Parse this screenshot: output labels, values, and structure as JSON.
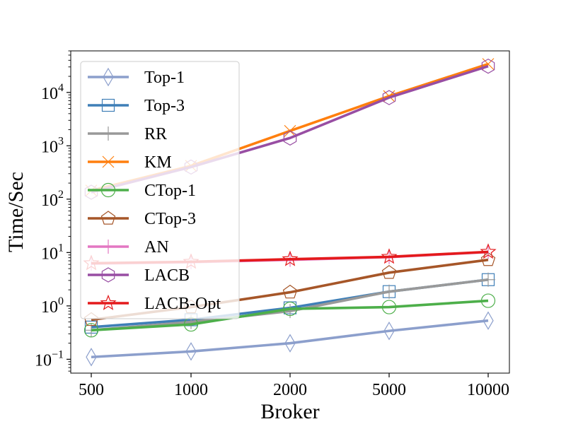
{
  "chart_data": {
    "type": "line",
    "title": "",
    "xlabel": "Broker",
    "ylabel": "Time/Sec",
    "yscale": "log",
    "categories": [
      "500",
      "1000",
      "2000",
      "5000",
      "10000"
    ],
    "ylim": [
      0.055,
      60000
    ],
    "y_ticks": [
      {
        "value": 0.1,
        "mantissa": "10",
        "exponent": "−1"
      },
      {
        "value": 1,
        "mantissa": "10",
        "exponent": "0"
      },
      {
        "value": 10,
        "mantissa": "10",
        "exponent": "1"
      },
      {
        "value": 100,
        "mantissa": "10",
        "exponent": "2"
      },
      {
        "value": 1000,
        "mantissa": "10",
        "exponent": "3"
      },
      {
        "value": 10000,
        "mantissa": "10",
        "exponent": "4"
      }
    ],
    "legend_position": "upper-left",
    "series": [
      {
        "name": "Top-1",
        "color": "#8c9fcc",
        "marker": "diamond",
        "values": [
          0.11,
          0.14,
          0.2,
          0.34,
          0.53
        ]
      },
      {
        "name": "Top-3",
        "color": "#3f7fb7",
        "marker": "square",
        "values": [
          0.4,
          0.55,
          0.92,
          1.85,
          3.1
        ]
      },
      {
        "name": "RR",
        "color": "#999999",
        "marker": "plus",
        "values": [
          0.35,
          0.5,
          0.8,
          1.85,
          3.1
        ]
      },
      {
        "name": "KM",
        "color": "#ff7f0e",
        "marker": "x",
        "values": [
          145,
          420,
          1900,
          8500,
          34000
        ]
      },
      {
        "name": "CTop-1",
        "color": "#4daf4a",
        "marker": "circle",
        "values": [
          0.35,
          0.45,
          0.88,
          0.95,
          1.25
        ]
      },
      {
        "name": "CTop-3",
        "color": "#a65628",
        "marker": "pentagon",
        "values": [
          0.55,
          0.95,
          1.8,
          4.2,
          7.3
        ]
      },
      {
        "name": "AN",
        "color": "#e377c2",
        "marker": "vline",
        "values": [
          6.2,
          6.6,
          7.3,
          8.2,
          10.2
        ]
      },
      {
        "name": "LACB",
        "color": "#984ea3",
        "marker": "hexagon",
        "values": [
          135,
          400,
          1400,
          8000,
          31000
        ]
      },
      {
        "name": "LACB-Opt",
        "color": "#e41a1c",
        "marker": "star",
        "values": [
          6.3,
          6.7,
          7.5,
          8.3,
          10.3
        ]
      }
    ]
  }
}
